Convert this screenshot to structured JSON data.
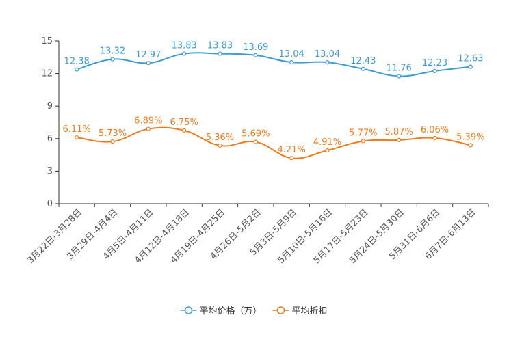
{
  "chart_data": {
    "type": "line",
    "title": "",
    "xlabel": "",
    "ylabel": "",
    "ylim": [
      0,
      15
    ],
    "yticks": [
      0,
      3,
      6,
      9,
      12,
      15
    ],
    "grid": false,
    "legend_position": "bottom",
    "categories": [
      "3月22日-3月28日",
      "3月29日-4月4日",
      "4月5日-4月11日",
      "4月12日-4月18日",
      "4月19日-4月25日",
      "4月26日-5月2日",
      "5月3日-5月9日",
      "5月10日-5月16日",
      "5月17日-5月23日",
      "5月24日-5月30日",
      "5月31日-6月6日",
      "6月7日-6月13日"
    ],
    "series": [
      {
        "name": "平均价格（万）",
        "color": "#3d9bd1",
        "values": [
          12.38,
          13.32,
          12.97,
          13.83,
          13.83,
          13.69,
          13.04,
          13.04,
          12.43,
          11.76,
          12.23,
          12.63
        ],
        "labels": [
          "12.38",
          "13.32",
          "12.97",
          "13.83",
          "13.83",
          "13.69",
          "13.04",
          "13.04",
          "12.43",
          "11.76",
          "12.23",
          "12.63"
        ]
      },
      {
        "name": "平均折扣",
        "color": "#f07a1a",
        "values": [
          6.11,
          5.73,
          6.89,
          6.75,
          5.36,
          5.69,
          4.21,
          4.91,
          5.77,
          5.87,
          6.06,
          5.39
        ],
        "labels": [
          "6.11%",
          "5.73%",
          "6.89%",
          "6.75%",
          "5.36%",
          "5.69%",
          "4.21%",
          "4.91%",
          "5.77%",
          "5.87%",
          "6.06%",
          "5.39%"
        ]
      }
    ]
  }
}
